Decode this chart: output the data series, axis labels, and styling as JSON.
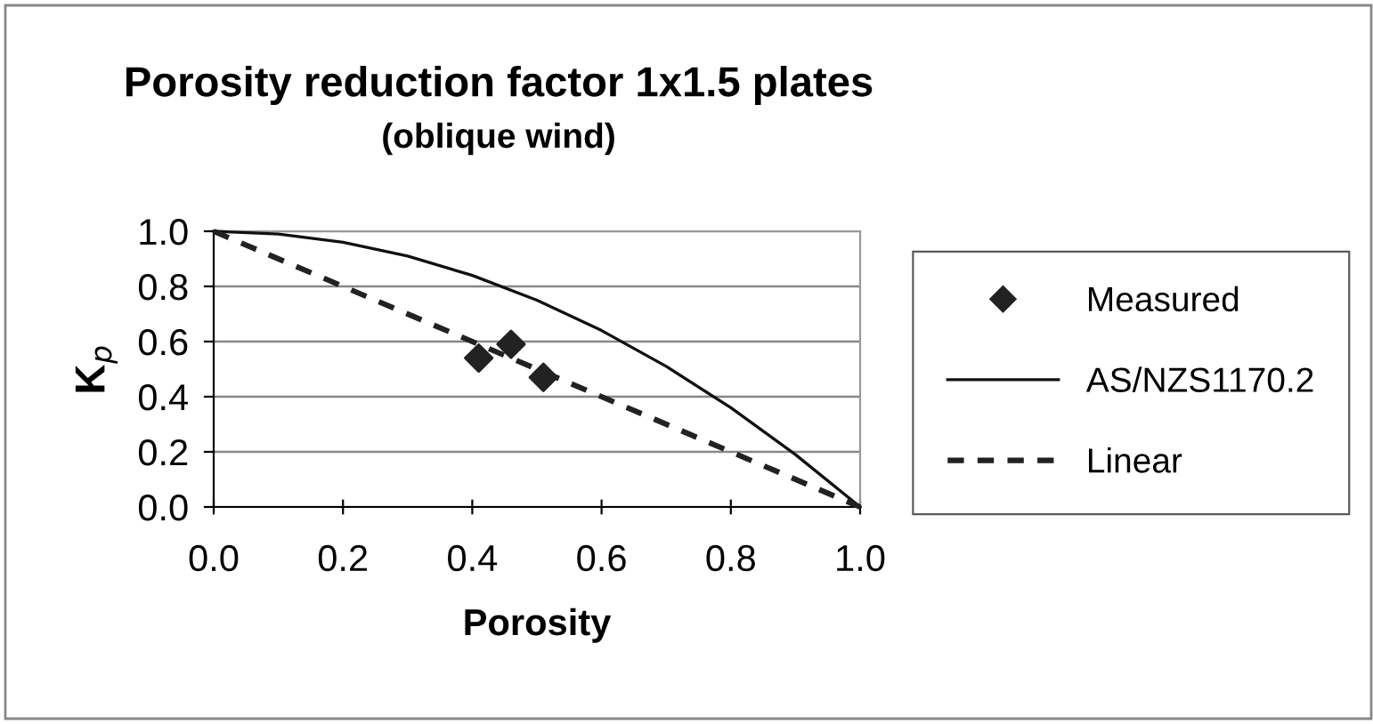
{
  "chart_data": {
    "type": "line",
    "title": "Porosity reduction factor 1x1.5 plates",
    "subtitle": "(oblique wind)",
    "xlabel": "Porosity",
    "ylabel": "K$_{p}$",
    "series": [
      {
        "name": "Measured",
        "type": "scatter",
        "color": "#222222",
        "marker": "diamond",
        "x": [
          0.41,
          0.46,
          0.51
        ],
        "values": [
          0.54,
          0.59,
          0.47
        ]
      },
      {
        "name": "AS/NZS1170.2",
        "color": "#111111",
        "line_style": "solid",
        "x": [
          0,
          0.1,
          0.2,
          0.3,
          0.4,
          0.5,
          0.6,
          0.7,
          0.8,
          0.9,
          1.0
        ],
        "values": [
          1.0,
          0.99,
          0.96,
          0.91,
          0.84,
          0.75,
          0.64,
          0.51,
          0.36,
          0.19,
          0.0
        ]
      },
      {
        "name": "Linear",
        "color": "#222222",
        "line_style": "dashed",
        "x": [
          0,
          1.0
        ],
        "values": [
          1.0,
          0.0
        ]
      }
    ],
    "xlim": [
      0,
      1.0
    ],
    "ylim": [
      0,
      1.0
    ],
    "xticks": [
      {
        "value": 0,
        "label": "0.0"
      },
      {
        "value": 0.2,
        "label": "0.2"
      },
      {
        "value": 0.4,
        "label": "0.4"
      },
      {
        "value": 0.6,
        "label": "0.6"
      },
      {
        "value": 0.8,
        "label": "0.8"
      },
      {
        "value": 1.0,
        "label": "1.0"
      }
    ],
    "yticks": [
      {
        "value": 0,
        "label": "0.0"
      },
      {
        "value": 0.2,
        "label": "0.2"
      },
      {
        "value": 0.4,
        "label": "0.4"
      },
      {
        "value": 0.6,
        "label": "0.6"
      },
      {
        "value": 0.8,
        "label": "0.8"
      },
      {
        "value": 1.0,
        "label": "1.0"
      }
    ],
    "grid": "y",
    "legend": "right"
  }
}
